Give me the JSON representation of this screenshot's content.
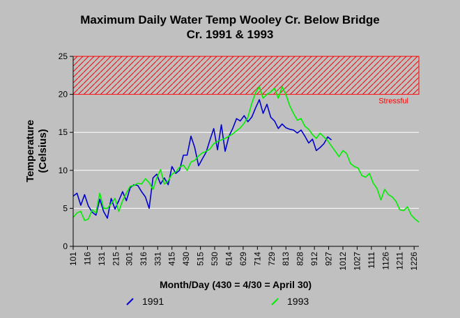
{
  "chart_data": {
    "type": "line",
    "title_line1": "Maximum Daily Water Temp Wooley Cr. Below Bridge",
    "title_line2": "Cr. 1991 & 1993",
    "xlabel": "Month/Day (430 = 4/30 = April 30)",
    "ylabel_line1": "Temperature",
    "ylabel_line2": "(Celsius)",
    "ylim": [
      0,
      25
    ],
    "yticks": [
      0,
      5,
      10,
      15,
      20,
      25
    ],
    "xlim": [
      1,
      365
    ],
    "grid": true,
    "xtick_labels": [
      "101",
      "116",
      "131",
      "215",
      "301",
      "316",
      "331",
      "415",
      "430",
      "515",
      "530",
      "614",
      "629",
      "714",
      "729",
      "813",
      "828",
      "912",
      "927",
      "1012",
      "1027",
      "1111",
      "1126",
      "1211",
      "1226"
    ],
    "xtick_days": [
      1,
      16,
      31,
      46,
      60,
      75,
      90,
      105,
      120,
      135,
      150,
      165,
      180,
      195,
      210,
      225,
      240,
      255,
      270,
      285,
      300,
      315,
      330,
      345,
      360
    ],
    "threshold": {
      "label": "Stressful",
      "y_from": 20,
      "y_to": 25,
      "color": "#ff0000"
    },
    "legend_position": "bottom",
    "series": [
      {
        "name": "1991",
        "color": "#0000cc",
        "x": [
          1,
          5,
          9,
          13,
          17,
          21,
          25,
          29,
          33,
          37,
          41,
          45,
          49,
          53,
          57,
          61,
          65,
          69,
          73,
          77,
          81,
          85,
          89,
          93,
          97,
          101,
          105,
          109,
          113,
          117,
          121,
          125,
          129,
          133,
          137,
          141,
          145,
          149,
          153,
          157,
          161,
          165,
          169,
          173,
          177,
          181,
          185,
          189,
          193,
          197,
          201,
          205,
          209,
          213,
          217,
          221,
          225,
          229,
          233,
          237,
          241,
          245,
          249,
          253,
          257,
          261,
          265,
          269,
          273
        ],
        "y": [
          6.6,
          7.0,
          5.4,
          6.8,
          5.3,
          4.5,
          4.1,
          6.2,
          4.6,
          3.7,
          6.3,
          4.9,
          6.0,
          7.2,
          6.0,
          7.7,
          8.1,
          8.0,
          7.2,
          6.5,
          5.0,
          9.0,
          9.5,
          8.2,
          9.0,
          8.1,
          10.5,
          9.6,
          10.0,
          12.0,
          12.0,
          14.5,
          13.0,
          10.6,
          11.5,
          12.4,
          14.0,
          15.5,
          12.7,
          16.0,
          12.5,
          14.5,
          15.5,
          16.8,
          16.5,
          17.2,
          16.4,
          17.0,
          18.2,
          19.3,
          17.5,
          18.7,
          17.0,
          16.5,
          15.5,
          16.1,
          15.6,
          15.4,
          15.3,
          14.9,
          15.3,
          14.5,
          13.6,
          14.1,
          12.6,
          13.0,
          13.5,
          14.4,
          14.0
        ]
      },
      {
        "name": "1993",
        "color": "#00ee00",
        "x": [
          1,
          5,
          9,
          13,
          17,
          21,
          25,
          29,
          33,
          37,
          41,
          45,
          49,
          53,
          57,
          61,
          65,
          69,
          73,
          77,
          81,
          85,
          89,
          93,
          97,
          101,
          105,
          109,
          113,
          117,
          121,
          125,
          129,
          133,
          137,
          141,
          145,
          149,
          153,
          157,
          161,
          165,
          169,
          173,
          177,
          181,
          185,
          189,
          193,
          197,
          201,
          205,
          209,
          213,
          217,
          221,
          225,
          229,
          233,
          237,
          241,
          245,
          249,
          253,
          257,
          261,
          265,
          269,
          273,
          277,
          281,
          285,
          289,
          293,
          297,
          301,
          305,
          309,
          313,
          317,
          321,
          325,
          329,
          333,
          337,
          341,
          345,
          349,
          353,
          357,
          361,
          365
        ],
        "y": [
          3.8,
          4.4,
          4.6,
          3.4,
          3.6,
          4.8,
          4.4,
          7.0,
          5.0,
          5.0,
          5.6,
          6.3,
          4.6,
          6.0,
          7.0,
          7.9,
          8.0,
          8.3,
          8.2,
          8.9,
          8.4,
          7.5,
          9.0,
          10.1,
          8.2,
          8.6,
          9.5,
          9.8,
          10.4,
          10.7,
          10.0,
          11.1,
          11.3,
          11.9,
          12.3,
          12.5,
          12.8,
          13.5,
          13.8,
          14.0,
          14.2,
          14.5,
          14.8,
          15.2,
          15.6,
          16.2,
          17.0,
          18.8,
          20.2,
          21.0,
          19.5,
          20.0,
          20.3,
          20.8,
          19.5,
          21.0,
          20.0,
          18.5,
          17.5,
          16.6,
          16.8,
          15.8,
          15.4,
          14.7,
          14.2,
          14.9,
          14.4,
          13.9,
          13.2,
          12.5,
          11.8,
          12.6,
          12.2,
          10.9,
          10.5,
          10.3,
          9.3,
          9.1,
          9.6,
          8.3,
          7.6,
          6.1,
          7.5,
          6.8,
          6.5,
          5.9,
          4.8,
          4.7,
          5.2,
          4.1,
          3.6,
          3.2
        ]
      }
    ]
  }
}
